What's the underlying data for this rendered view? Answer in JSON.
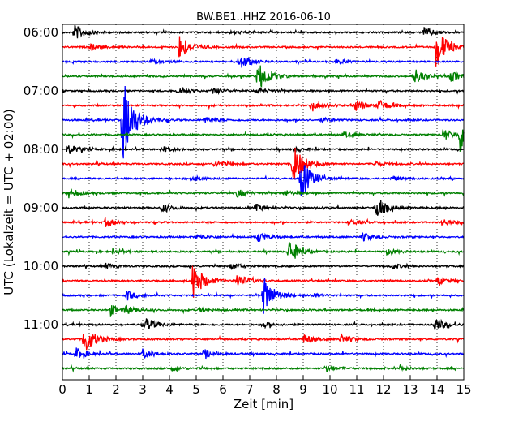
{
  "chart_data": {
    "type": "line",
    "title": "BW.BE1..HHZ 2016-06-10",
    "xlabel": "Zeit  [min]",
    "ylabel": "UTC (Lokalzeit = UTC + 02:00)",
    "xlim": [
      0,
      15
    ],
    "x_ticks": [
      "0",
      "1",
      "2",
      "3",
      "4",
      "5",
      "6",
      "7",
      "8",
      "9",
      "10",
      "11",
      "12",
      "13",
      "14",
      "15"
    ],
    "y_tick_labels": [
      "06:00",
      "07:00",
      "08:00",
      "09:00",
      "10:00",
      "11:00"
    ],
    "trace_interval_minutes": 15,
    "grid": "vertical dotted at each minute",
    "trace_colors": [
      "#000000",
      "#ff0000",
      "#0000ff",
      "#008000"
    ],
    "series": [
      {
        "start": "06:00",
        "events": [
          {
            "x": 0.45,
            "a": 0.55
          },
          {
            "x": 13.5,
            "a": 0.35
          },
          {
            "x": 6.3,
            "a": 0.15
          }
        ]
      },
      {
        "start": "06:15",
        "events": [
          {
            "x": 4.35,
            "a": 0.95
          },
          {
            "x": 13.95,
            "a": 1.6
          },
          {
            "x": 1.0,
            "a": 0.25
          }
        ]
      },
      {
        "start": "06:30",
        "events": [
          {
            "x": 6.6,
            "a": 0.55
          },
          {
            "x": 3.3,
            "a": 0.15
          },
          {
            "x": 10.2,
            "a": 0.15
          }
        ]
      },
      {
        "start": "06:45",
        "events": [
          {
            "x": 7.3,
            "a": 1.1
          },
          {
            "x": 13.1,
            "a": 0.6
          },
          {
            "x": 14.5,
            "a": 0.35
          }
        ]
      },
      {
        "start": "07:00",
        "events": [
          {
            "x": 4.3,
            "a": 0.25
          },
          {
            "x": 5.6,
            "a": 0.2
          },
          {
            "x": 7.3,
            "a": 0.2
          }
        ]
      },
      {
        "start": "07:15",
        "events": [
          {
            "x": 10.9,
            "a": 0.45
          },
          {
            "x": 11.8,
            "a": 0.35
          },
          {
            "x": 9.3,
            "a": 0.3
          }
        ]
      },
      {
        "start": "07:30",
        "events": [
          {
            "x": 2.25,
            "a": 3.1
          },
          {
            "x": 5.3,
            "a": 0.2
          },
          {
            "x": 9.7,
            "a": 0.15
          }
        ]
      },
      {
        "start": "07:45",
        "events": [
          {
            "x": 14.85,
            "a": 1.2
          },
          {
            "x": 14.2,
            "a": 0.4
          },
          {
            "x": 10.5,
            "a": 0.2
          }
        ]
      },
      {
        "start": "08:00",
        "events": [
          {
            "x": 0.2,
            "a": 0.35
          },
          {
            "x": 3.7,
            "a": 0.2
          },
          {
            "x": 8.7,
            "a": 0.15
          }
        ]
      },
      {
        "start": "08:15",
        "events": [
          {
            "x": 8.6,
            "a": 1.5
          },
          {
            "x": 5.7,
            "a": 0.25
          },
          {
            "x": 11.6,
            "a": 0.2
          }
        ]
      },
      {
        "start": "08:30",
        "events": [
          {
            "x": 8.9,
            "a": 1.5
          },
          {
            "x": 4.8,
            "a": 0.2
          },
          {
            "x": 12.3,
            "a": 0.15
          }
        ]
      },
      {
        "start": "08:45",
        "events": [
          {
            "x": 6.5,
            "a": 0.3
          },
          {
            "x": 0.2,
            "a": 0.25
          },
          {
            "x": 8.3,
            "a": 0.2
          }
        ]
      },
      {
        "start": "09:00",
        "events": [
          {
            "x": 11.7,
            "a": 0.8
          },
          {
            "x": 3.7,
            "a": 0.3
          },
          {
            "x": 7.2,
            "a": 0.25
          }
        ]
      },
      {
        "start": "09:15",
        "events": [
          {
            "x": 1.6,
            "a": 0.3
          },
          {
            "x": 14.2,
            "a": 0.25
          },
          {
            "x": 10.7,
            "a": 0.2
          }
        ]
      },
      {
        "start": "09:30",
        "events": [
          {
            "x": 7.3,
            "a": 0.35
          },
          {
            "x": 11.2,
            "a": 0.3
          },
          {
            "x": 5.0,
            "a": 0.2
          }
        ]
      },
      {
        "start": "09:45",
        "events": [
          {
            "x": 8.45,
            "a": 0.9
          },
          {
            "x": 12.1,
            "a": 0.2
          },
          {
            "x": 1.9,
            "a": 0.15
          }
        ]
      },
      {
        "start": "10:00",
        "events": [
          {
            "x": 6.3,
            "a": 0.25
          },
          {
            "x": 1.6,
            "a": 0.2
          },
          {
            "x": 12.3,
            "a": 0.2
          }
        ]
      },
      {
        "start": "10:15",
        "events": [
          {
            "x": 4.85,
            "a": 1.4
          },
          {
            "x": 6.5,
            "a": 0.5
          },
          {
            "x": 14.0,
            "a": 0.25
          }
        ]
      },
      {
        "start": "10:30",
        "events": [
          {
            "x": 7.5,
            "a": 1.4
          },
          {
            "x": 2.4,
            "a": 0.3
          },
          {
            "x": 9.3,
            "a": 0.15
          }
        ]
      },
      {
        "start": "10:45",
        "events": [
          {
            "x": 1.8,
            "a": 0.35
          },
          {
            "x": 2.3,
            "a": 0.25
          },
          {
            "x": 5.1,
            "a": 0.15
          }
        ]
      },
      {
        "start": "11:00",
        "events": [
          {
            "x": 3.1,
            "a": 0.5
          },
          {
            "x": 13.9,
            "a": 0.5
          },
          {
            "x": 7.5,
            "a": 0.2
          }
        ]
      },
      {
        "start": "11:15",
        "events": [
          {
            "x": 0.8,
            "a": 1.1
          },
          {
            "x": 9.0,
            "a": 0.35
          },
          {
            "x": 10.4,
            "a": 0.3
          }
        ]
      },
      {
        "start": "11:30",
        "events": [
          {
            "x": 0.5,
            "a": 0.4
          },
          {
            "x": 3.0,
            "a": 0.35
          },
          {
            "x": 5.3,
            "a": 0.3
          }
        ]
      },
      {
        "start": "11:45",
        "events": [
          {
            "x": 9.8,
            "a": 0.25
          },
          {
            "x": 4.1,
            "a": 0.15
          },
          {
            "x": 12.6,
            "a": 0.15
          }
        ]
      }
    ]
  }
}
